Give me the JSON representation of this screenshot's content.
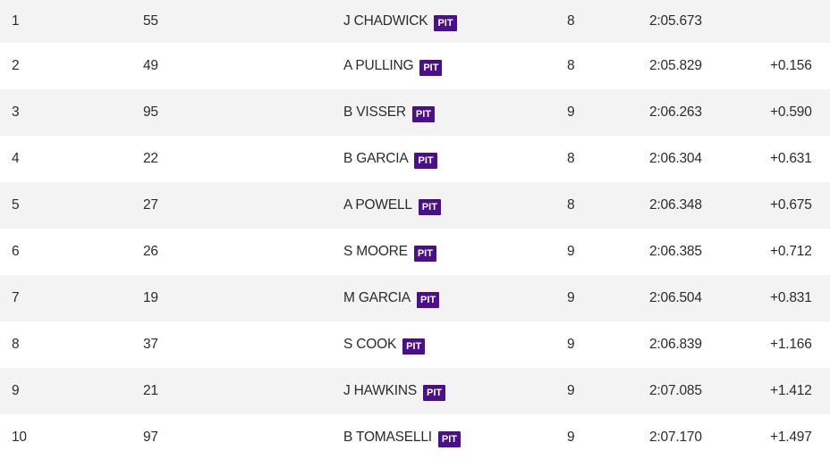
{
  "table": {
    "rows": [
      {
        "position": "1",
        "number": "55",
        "driver": "J CHADWICK",
        "badge": "PIT",
        "laps": "8",
        "best_time": "2:05.673",
        "gap": ""
      },
      {
        "position": "2",
        "number": "49",
        "driver": "A PULLING",
        "badge": "PIT",
        "laps": "8",
        "best_time": "2:05.829",
        "gap": "+0.156"
      },
      {
        "position": "3",
        "number": "95",
        "driver": "B VISSER",
        "badge": "PIT",
        "laps": "9",
        "best_time": "2:06.263",
        "gap": "+0.590"
      },
      {
        "position": "4",
        "number": "22",
        "driver": "B GARCIA",
        "badge": "PIT",
        "laps": "8",
        "best_time": "2:06.304",
        "gap": "+0.631"
      },
      {
        "position": "5",
        "number": "27",
        "driver": "A POWELL",
        "badge": "PIT",
        "laps": "8",
        "best_time": "2:06.348",
        "gap": "+0.675"
      },
      {
        "position": "6",
        "number": "26",
        "driver": "S MOORE",
        "badge": "PIT",
        "laps": "9",
        "best_time": "2:06.385",
        "gap": "+0.712"
      },
      {
        "position": "7",
        "number": "19",
        "driver": "M GARCIA",
        "badge": "PIT",
        "laps": "9",
        "best_time": "2:06.504",
        "gap": "+0.831"
      },
      {
        "position": "8",
        "number": "37",
        "driver": "S COOK",
        "badge": "PIT",
        "laps": "9",
        "best_time": "2:06.839",
        "gap": "+1.166"
      },
      {
        "position": "9",
        "number": "21",
        "driver": "J HAWKINS",
        "badge": "PIT",
        "laps": "9",
        "best_time": "2:07.085",
        "gap": "+1.412"
      },
      {
        "position": "10",
        "number": "97",
        "driver": "B TOMASELLI",
        "badge": "PIT",
        "laps": "9",
        "best_time": "2:07.170",
        "gap": "+1.497"
      }
    ]
  },
  "colors": {
    "pit_badge": "#4b0f8c",
    "row_stripe": "#f3f3f3",
    "text": "#2b2b2b"
  }
}
